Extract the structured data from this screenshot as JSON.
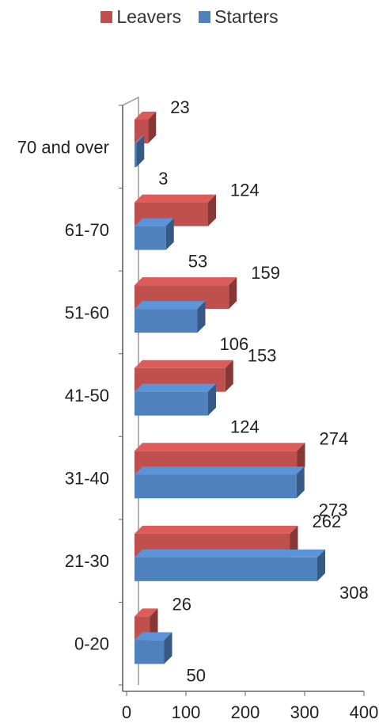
{
  "chart_data": {
    "type": "bar",
    "orientation": "horizontal",
    "three_d": true,
    "categories": [
      "0-20",
      "21-30",
      "31-40",
      "41-50",
      "51-60",
      "61-70",
      "70 and over"
    ],
    "series": [
      {
        "name": "Leavers",
        "values": [
          26,
          262,
          274,
          153,
          159,
          124,
          23
        ],
        "color": "#c0504d"
      },
      {
        "name": "Starters",
        "values": [
          50,
          308,
          273,
          124,
          106,
          53,
          3
        ],
        "color": "#4f81bd"
      }
    ],
    "xlim": [
      0,
      400
    ],
    "xticks": [
      "0",
      "100",
      "200",
      "300",
      "400"
    ],
    "legend_position": "top",
    "grid": false,
    "data_labels": true
  }
}
